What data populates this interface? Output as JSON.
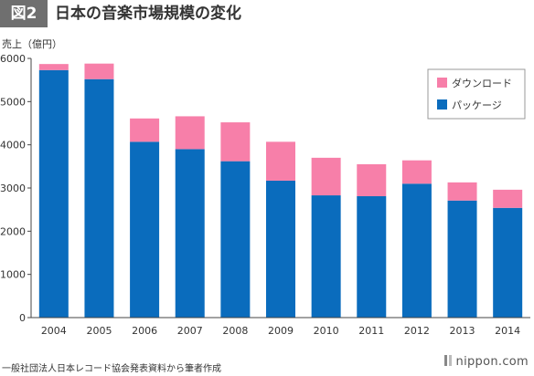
{
  "header": {
    "badge": "図2",
    "title": "日本の音楽市場規模の変化"
  },
  "colors": {
    "package": "#0a6cbd",
    "download": "#f77fa9",
    "axis": "#444444",
    "grid": "#e6e6e6",
    "header_bg": "#6f6f6f"
  },
  "chart_data": {
    "type": "bar",
    "stacked": true,
    "ylabel": "売上（億円）",
    "xlabel": "",
    "ylim": [
      0,
      6000
    ],
    "yticks": [
      0,
      1000,
      2000,
      3000,
      4000,
      5000,
      6000
    ],
    "grid": false,
    "legend_position": "top-right",
    "categories": [
      "2004",
      "2005",
      "2006",
      "2007",
      "2008",
      "2009",
      "2010",
      "2011",
      "2012",
      "2013",
      "2014"
    ],
    "series": [
      {
        "name": "パッケージ",
        "color": "#0a6cbd",
        "values": [
          5730,
          5520,
          4070,
          3900,
          3620,
          3170,
          2830,
          2810,
          3100,
          2710,
          2540
        ]
      },
      {
        "name": "ダウンロード",
        "color": "#f77fa9",
        "values": [
          140,
          360,
          540,
          760,
          900,
          900,
          870,
          740,
          540,
          420,
          420
        ]
      }
    ]
  },
  "footer": {
    "source": "一般社団法人日本レコード協会発表資料から筆者作成",
    "brand": "nippon.com"
  }
}
